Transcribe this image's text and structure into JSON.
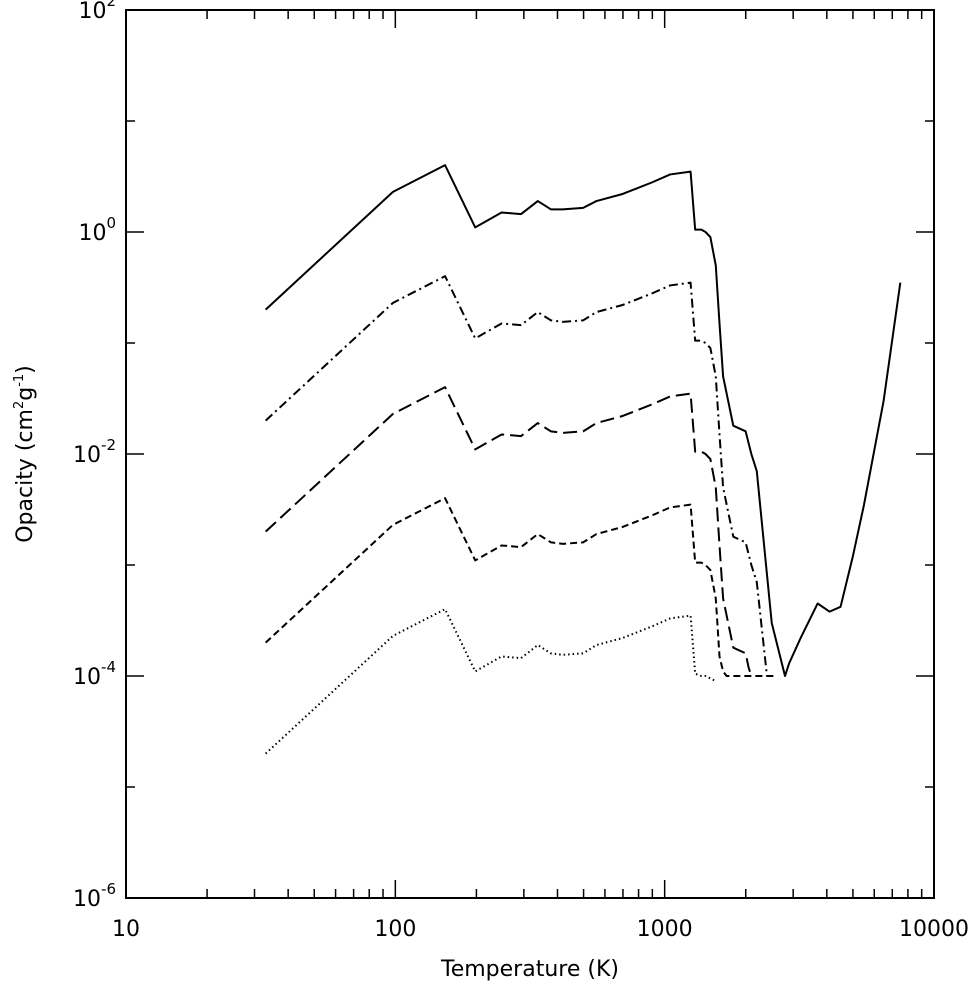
{
  "chart_data": {
    "type": "line",
    "title": "",
    "xlabel": "Temperature (K)",
    "ylabel": {
      "prefix": "Opacity (cm",
      "sup1": "2",
      "mid": "g",
      "sup2": "-1",
      "suffix": ")"
    },
    "xscale": "log",
    "yscale": "log",
    "xlim": [
      10,
      10000
    ],
    "ylim": [
      1e-06,
      100
    ],
    "grid": false,
    "legend": "none",
    "x_ticks": [
      {
        "value": 10,
        "label": "10"
      },
      {
        "value": 100,
        "label": "100"
      },
      {
        "value": 1000,
        "label": "1000"
      },
      {
        "value": 10000,
        "label": "10000"
      }
    ],
    "y_ticks": [
      {
        "value": 1e-06,
        "base": "10",
        "exp": "-6"
      },
      {
        "value": 0.0001,
        "base": "10",
        "exp": "-4"
      },
      {
        "value": 0.01,
        "base": "10",
        "exp": "-2"
      },
      {
        "value": 1,
        "base": "10",
        "exp": "0"
      },
      {
        "value": 100,
        "base": "10",
        "exp": "2"
      }
    ],
    "series": [
      {
        "style": "solid",
        "color": "#000000",
        "x": [
          33,
          98,
          153,
          198,
          248,
          293,
          338,
          378,
          418,
          498,
          558,
          698,
          798,
          898,
          1048,
          1248,
          1298,
          1368,
          1418,
          1478,
          1548,
          1598,
          1648,
          1798,
          1998,
          2098,
          2198,
          2498,
          2798,
          2898,
          3198,
          3698,
          4098,
          4498,
          4998,
          5498,
          6498,
          7498
        ],
        "y": [
          0.2,
          2.3,
          4.0,
          1.1,
          1.5,
          1.45,
          1.9,
          1.6,
          1.6,
          1.65,
          1.9,
          2.2,
          2.5,
          2.8,
          3.3,
          3.5,
          1.05,
          1.05,
          1.0,
          0.9,
          0.5,
          0.15,
          0.05,
          0.018,
          0.016,
          0.01,
          0.007,
          0.0003,
          0.0001,
          0.00013,
          0.00022,
          0.00045,
          0.00038,
          0.00042,
          0.0012,
          0.0035,
          0.03,
          0.35
        ]
      },
      {
        "style": "dashdot",
        "color": "#000000",
        "x": [
          33,
          98,
          153,
          198,
          248,
          293,
          338,
          378,
          418,
          498,
          558,
          698,
          798,
          898,
          1048,
          1248,
          1298,
          1368,
          1418,
          1478,
          1548,
          1598,
          1648,
          1798,
          1998,
          2098,
          2198,
          2398
        ],
        "y": [
          0.02,
          0.23,
          0.4,
          0.11,
          0.15,
          0.145,
          0.19,
          0.16,
          0.155,
          0.16,
          0.19,
          0.22,
          0.25,
          0.28,
          0.33,
          0.35,
          0.105,
          0.105,
          0.1,
          0.09,
          0.05,
          0.015,
          0.005,
          0.0018,
          0.0016,
          0.001,
          0.0007,
          0.0001
        ]
      },
      {
        "style": "longdash",
        "color": "#000000",
        "x": [
          33,
          98,
          153,
          198,
          248,
          293,
          338,
          378,
          418,
          498,
          558,
          698,
          798,
          898,
          1048,
          1248,
          1298,
          1368,
          1418,
          1478,
          1548,
          1598,
          1648,
          1798,
          1998,
          2048,
          2098
        ],
        "y": [
          0.002,
          0.023,
          0.04,
          0.011,
          0.015,
          0.0145,
          0.019,
          0.016,
          0.0155,
          0.016,
          0.019,
          0.022,
          0.025,
          0.028,
          0.033,
          0.035,
          0.0105,
          0.0105,
          0.01,
          0.009,
          0.005,
          0.0015,
          0.0005,
          0.00018,
          0.00016,
          0.00012,
          0.0001
        ]
      },
      {
        "style": "dashed",
        "color": "#000000",
        "x": [
          33,
          98,
          153,
          198,
          248,
          293,
          338,
          378,
          418,
          498,
          558,
          698,
          798,
          898,
          1048,
          1248,
          1298,
          1368,
          1418,
          1478,
          1548,
          1598,
          1648,
          1698,
          1798,
          1998,
          2198,
          2598
        ],
        "y": [
          0.0002,
          0.0023,
          0.004,
          0.0011,
          0.0015,
          0.00145,
          0.0019,
          0.0016,
          0.00155,
          0.0016,
          0.0019,
          0.0022,
          0.0025,
          0.0028,
          0.0033,
          0.0035,
          0.00105,
          0.00105,
          0.001,
          0.0009,
          0.0005,
          0.00015,
          0.00011,
          0.0001,
          0.0001,
          0.0001,
          0.0001,
          0.0001
        ]
      },
      {
        "style": "dotted",
        "color": "#000000",
        "x": [
          33,
          98,
          153,
          198,
          248,
          293,
          338,
          378,
          418,
          498,
          558,
          698,
          798,
          898,
          1048,
          1248,
          1298,
          1368,
          1418,
          1478,
          1548
        ],
        "y": [
          2e-05,
          0.00023,
          0.0004,
          0.00011,
          0.00015,
          0.000145,
          0.00019,
          0.00016,
          0.000155,
          0.00016,
          0.00019,
          0.00022,
          0.00025,
          0.00028,
          0.00033,
          0.00035,
          0.000105,
          0.0001,
          0.0001,
          9.5e-05,
          9e-05
        ]
      }
    ]
  }
}
